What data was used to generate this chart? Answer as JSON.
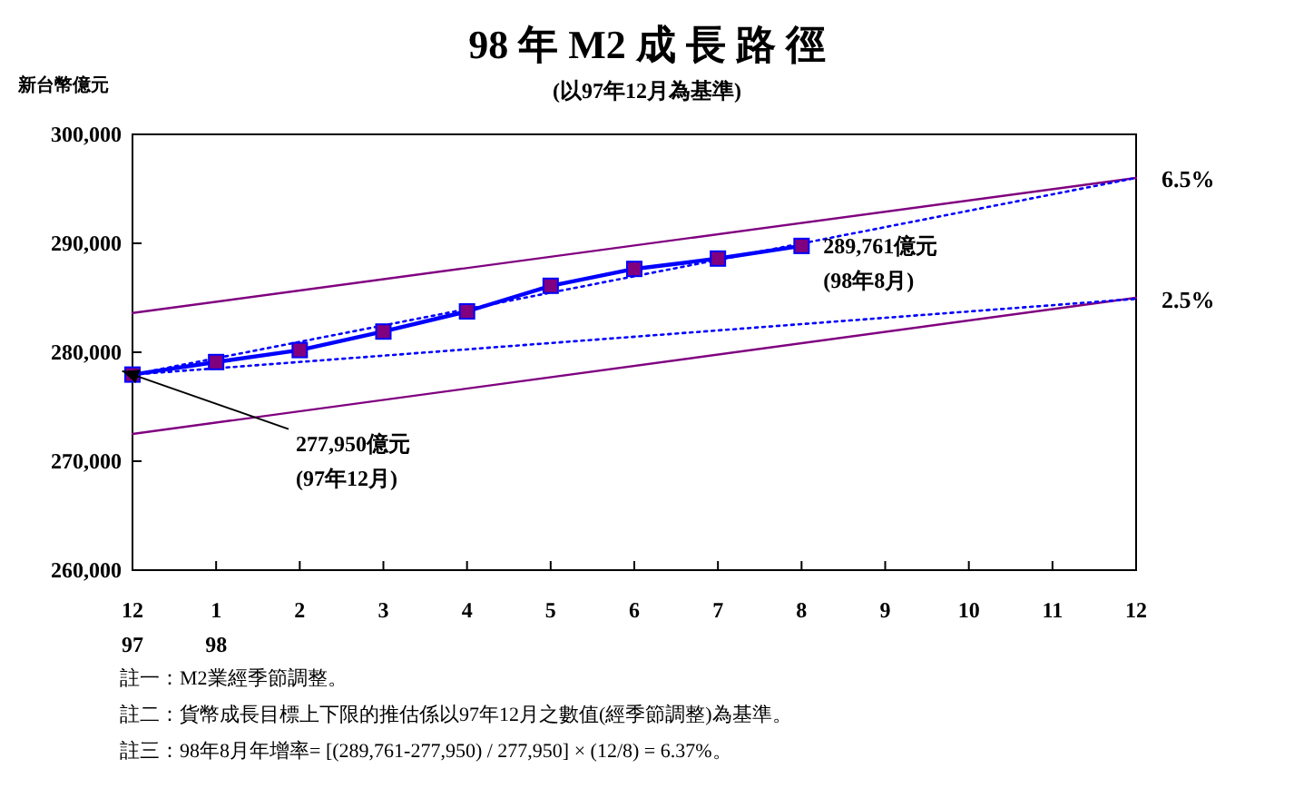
{
  "chart_data": {
    "type": "line",
    "title": "98 年 M2 成 長 路 徑",
    "subtitle": "(以97年12月為基準)",
    "ylabel": "新台幣億元",
    "categories": [
      "12\n97",
      "1\n98",
      "2",
      "3",
      "4",
      "5",
      "6",
      "7",
      "8",
      "9",
      "10",
      "11",
      "12"
    ],
    "series": [
      {
        "color": "#800080",
        "line_style": "solid",
        "values": [
          283600,
          null,
          null,
          null,
          null,
          null,
          null,
          null,
          null,
          null,
          null,
          null,
          296000
        ]
      },
      {
        "color": "#800080",
        "line_style": "solid",
        "values": [
          272500,
          null,
          null,
          null,
          null,
          null,
          null,
          null,
          null,
          null,
          null,
          null,
          285000
        ]
      },
      {
        "name": "6.5%",
        "color": "#0000ff",
        "line_style": "dotted",
        "values": [
          277950,
          null,
          null,
          null,
          null,
          null,
          null,
          null,
          null,
          null,
          null,
          null,
          296000
        ]
      },
      {
        "name": "2.5%",
        "color": "#0000ff",
        "line_style": "dotted",
        "values": [
          277950,
          null,
          null,
          null,
          null,
          null,
          null,
          null,
          null,
          null,
          null,
          null,
          284900
        ]
      },
      {
        "color": "#0000ff",
        "line_style": "solid",
        "marker": "square",
        "colors": [
          "#800080",
          "#800080",
          "#800080",
          "#800080",
          "#800080",
          "#800080",
          "#800080",
          "#800080",
          "#800080",
          null,
          null,
          null,
          null
        ],
        "values": [
          277950,
          279100,
          280200,
          281900,
          283750,
          286100,
          287650,
          288600,
          289761,
          null,
          null,
          null,
          null
        ]
      }
    ],
    "ylim": [
      260000,
      300000
    ],
    "yticks": [
      {
        "value": 260000,
        "label": "260,000"
      },
      {
        "value": 270000,
        "label": "270,000"
      },
      {
        "value": 280000,
        "label": "280,000"
      },
      {
        "value": 290000,
        "label": "290,000"
      },
      {
        "value": 300000,
        "label": "300,000"
      }
    ],
    "grid": false,
    "annotations": [
      {
        "text": "277,950億元\n(97年12月)",
        "x": "12\n97",
        "y": 277950
      },
      {
        "text": "289,761億元\n(98年8月)",
        "x": "8",
        "y": 289761
      },
      "註一：M2業經季節調整。",
      "註二：貨幣成長目標上下限的推估係以97年12月之數值(經季節調整)為基準。",
      "註三：98年8月年增率= [(289,761-277,950) / 277,950] × (12/8) = 6.37%。"
    ]
  }
}
